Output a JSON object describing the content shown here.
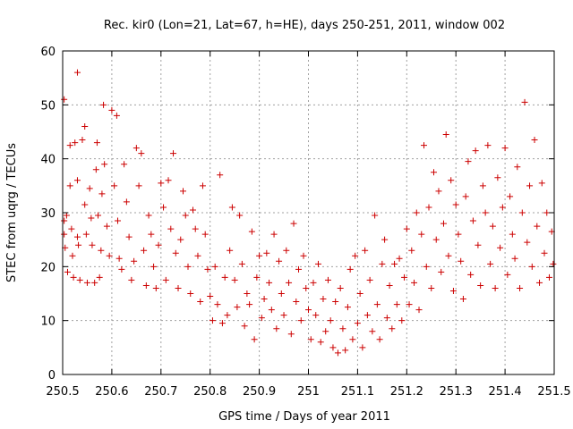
{
  "chart_data": {
    "type": "scatter",
    "title": "Rec. kir0 (Lon=21, Lat=67, h=HE), days 250-251, 2011, window 002",
    "xlabel": "GPS time / Days of year 2011",
    "ylabel": "STEC from uqrg / TECUs",
    "xlim": [
      250.5,
      251.5
    ],
    "ylim": [
      0,
      60
    ],
    "xticks": [
      "250.5",
      "250.6",
      "250.7",
      "250.8",
      "250.9",
      "251",
      "251.1",
      "251.2",
      "251.3",
      "251.4",
      "251.5"
    ],
    "yticks": [
      "0",
      "10",
      "20",
      "30",
      "40",
      "50",
      "60"
    ],
    "grid": true,
    "marker": "+",
    "color": "#cc0000",
    "series": [
      {
        "name": "",
        "points": [
          [
            250.503,
            51.0
          ],
          [
            250.503,
            28.5
          ],
          [
            250.503,
            26.0
          ],
          [
            250.505,
            23.5
          ],
          [
            250.508,
            29.5
          ],
          [
            250.51,
            19.0
          ],
          [
            250.515,
            42.5
          ],
          [
            250.515,
            35.0
          ],
          [
            250.518,
            27.0
          ],
          [
            250.52,
            22.0
          ],
          [
            250.522,
            18.0
          ],
          [
            250.525,
            43.0
          ],
          [
            250.53,
            56.0
          ],
          [
            250.53,
            36.0
          ],
          [
            250.53,
            25.5
          ],
          [
            250.532,
            24.0
          ],
          [
            250.535,
            17.5
          ],
          [
            250.54,
            43.5
          ],
          [
            250.545,
            46.0
          ],
          [
            250.545,
            31.5
          ],
          [
            250.548,
            26.0
          ],
          [
            250.55,
            17.0
          ],
          [
            250.555,
            34.5
          ],
          [
            250.558,
            29.0
          ],
          [
            250.56,
            24.0
          ],
          [
            250.565,
            17.0
          ],
          [
            250.568,
            38.0
          ],
          [
            250.57,
            43.0
          ],
          [
            250.572,
            29.5
          ],
          [
            250.575,
            18.0
          ],
          [
            250.578,
            23.0
          ],
          [
            250.58,
            33.5
          ],
          [
            250.583,
            50.0
          ],
          [
            250.585,
            39.0
          ],
          [
            250.59,
            27.5
          ],
          [
            250.595,
            22.0
          ],
          [
            250.6,
            49.0
          ],
          [
            250.605,
            35.0
          ],
          [
            250.61,
            48.0
          ],
          [
            250.612,
            28.5
          ],
          [
            250.615,
            21.5
          ],
          [
            250.62,
            19.5
          ],
          [
            250.625,
            39.0
          ],
          [
            250.63,
            32.0
          ],
          [
            250.635,
            25.5
          ],
          [
            250.64,
            17.5
          ],
          [
            250.645,
            21.0
          ],
          [
            250.65,
            42.0
          ],
          [
            250.655,
            35.0
          ],
          [
            250.66,
            41.0
          ],
          [
            250.665,
            23.0
          ],
          [
            250.67,
            16.5
          ],
          [
            250.675,
            29.5
          ],
          [
            250.68,
            26.0
          ],
          [
            250.685,
            20.0
          ],
          [
            250.69,
            16.0
          ],
          [
            250.695,
            24.0
          ],
          [
            250.7,
            35.5
          ],
          [
            250.705,
            31.0
          ],
          [
            250.71,
            17.5
          ],
          [
            250.715,
            36.0
          ],
          [
            250.72,
            27.0
          ],
          [
            250.725,
            41.0
          ],
          [
            250.73,
            22.5
          ],
          [
            250.735,
            16.0
          ],
          [
            250.74,
            25.0
          ],
          [
            250.745,
            34.0
          ],
          [
            250.75,
            29.5
          ],
          [
            250.755,
            20.0
          ],
          [
            250.76,
            15.0
          ],
          [
            250.765,
            30.5
          ],
          [
            250.77,
            27.0
          ],
          [
            250.775,
            22.0
          ],
          [
            250.78,
            13.5
          ],
          [
            250.785,
            35.0
          ],
          [
            250.79,
            26.0
          ],
          [
            250.795,
            19.5
          ],
          [
            250.8,
            14.5
          ],
          [
            250.805,
            10.0
          ],
          [
            250.81,
            20.0
          ],
          [
            250.815,
            13.0
          ],
          [
            250.82,
            37.0
          ],
          [
            250.825,
            9.5
          ],
          [
            250.83,
            18.0
          ],
          [
            250.835,
            11.0
          ],
          [
            250.84,
            23.0
          ],
          [
            250.845,
            31.0
          ],
          [
            250.85,
            17.5
          ],
          [
            250.855,
            12.5
          ],
          [
            250.86,
            29.5
          ],
          [
            250.865,
            20.5
          ],
          [
            250.87,
            9.0
          ],
          [
            250.875,
            15.0
          ],
          [
            250.88,
            13.0
          ],
          [
            250.885,
            26.5
          ],
          [
            250.89,
            6.5
          ],
          [
            250.895,
            18.0
          ],
          [
            250.9,
            22.0
          ],
          [
            250.905,
            10.5
          ],
          [
            250.91,
            14.0
          ],
          [
            250.915,
            22.5
          ],
          [
            250.92,
            17.0
          ],
          [
            250.925,
            12.0
          ],
          [
            250.93,
            26.0
          ],
          [
            250.935,
            8.5
          ],
          [
            250.94,
            21.0
          ],
          [
            250.945,
            15.0
          ],
          [
            250.95,
            11.0
          ],
          [
            250.955,
            23.0
          ],
          [
            250.96,
            17.0
          ],
          [
            250.965,
            7.5
          ],
          [
            250.97,
            28.0
          ],
          [
            250.975,
            13.5
          ],
          [
            250.98,
            19.5
          ],
          [
            250.985,
            10.0
          ],
          [
            250.99,
            22.0
          ],
          [
            250.995,
            16.0
          ],
          [
            251.0,
            12.0
          ],
          [
            251.005,
            6.5
          ],
          [
            251.01,
            17.0
          ],
          [
            251.015,
            11.0
          ],
          [
            251.02,
            20.5
          ],
          [
            251.025,
            6.0
          ],
          [
            251.03,
            14.0
          ],
          [
            251.035,
            8.0
          ],
          [
            251.04,
            17.5
          ],
          [
            251.045,
            10.0
          ],
          [
            251.05,
            5.0
          ],
          [
            251.055,
            13.5
          ],
          [
            251.06,
            4.0
          ],
          [
            251.065,
            16.0
          ],
          [
            251.07,
            8.5
          ],
          [
            251.075,
            4.5
          ],
          [
            251.08,
            12.5
          ],
          [
            251.085,
            19.5
          ],
          [
            251.09,
            6.5
          ],
          [
            251.095,
            22.0
          ],
          [
            251.1,
            9.5
          ],
          [
            251.105,
            15.0
          ],
          [
            251.11,
            5.0
          ],
          [
            251.115,
            23.0
          ],
          [
            251.12,
            11.0
          ],
          [
            251.125,
            17.5
          ],
          [
            251.13,
            8.0
          ],
          [
            251.135,
            29.5
          ],
          [
            251.14,
            13.0
          ],
          [
            251.145,
            6.5
          ],
          [
            251.15,
            20.5
          ],
          [
            251.155,
            25.0
          ],
          [
            251.16,
            10.5
          ],
          [
            251.165,
            16.5
          ],
          [
            251.17,
            8.5
          ],
          [
            251.175,
            20.5
          ],
          [
            251.18,
            13.0
          ],
          [
            251.185,
            21.5
          ],
          [
            251.19,
            10.0
          ],
          [
            251.195,
            18.0
          ],
          [
            251.2,
            27.0
          ],
          [
            251.205,
            13.0
          ],
          [
            251.21,
            23.0
          ],
          [
            251.215,
            17.0
          ],
          [
            251.22,
            30.0
          ],
          [
            251.225,
            12.0
          ],
          [
            251.23,
            26.0
          ],
          [
            251.235,
            42.5
          ],
          [
            251.24,
            20.0
          ],
          [
            251.245,
            31.0
          ],
          [
            251.25,
            16.0
          ],
          [
            251.255,
            37.5
          ],
          [
            251.26,
            25.0
          ],
          [
            251.265,
            34.0
          ],
          [
            251.27,
            19.0
          ],
          [
            251.275,
            28.0
          ],
          [
            251.28,
            44.5
          ],
          [
            251.285,
            22.0
          ],
          [
            251.29,
            36.0
          ],
          [
            251.295,
            15.5
          ],
          [
            251.3,
            31.5
          ],
          [
            251.305,
            26.0
          ],
          [
            251.31,
            21.0
          ],
          [
            251.315,
            14.0
          ],
          [
            251.32,
            33.0
          ],
          [
            251.325,
            39.5
          ],
          [
            251.33,
            18.5
          ],
          [
            251.335,
            28.5
          ],
          [
            251.34,
            41.5
          ],
          [
            251.345,
            24.0
          ],
          [
            251.35,
            16.5
          ],
          [
            251.355,
            35.0
          ],
          [
            251.36,
            30.0
          ],
          [
            251.365,
            42.5
          ],
          [
            251.37,
            20.5
          ],
          [
            251.375,
            27.5
          ],
          [
            251.38,
            16.0
          ],
          [
            251.385,
            36.5
          ],
          [
            251.39,
            23.5
          ],
          [
            251.395,
            31.0
          ],
          [
            251.4,
            42.0
          ],
          [
            251.405,
            18.5
          ],
          [
            251.41,
            33.0
          ],
          [
            251.415,
            26.0
          ],
          [
            251.42,
            21.5
          ],
          [
            251.425,
            38.5
          ],
          [
            251.43,
            16.0
          ],
          [
            251.435,
            30.0
          ],
          [
            251.44,
            50.5
          ],
          [
            251.445,
            24.5
          ],
          [
            251.45,
            35.0
          ],
          [
            251.455,
            20.0
          ],
          [
            251.46,
            43.5
          ],
          [
            251.465,
            27.5
          ],
          [
            251.47,
            17.0
          ],
          [
            251.475,
            35.5
          ],
          [
            251.48,
            22.5
          ],
          [
            251.485,
            30.0
          ],
          [
            251.49,
            18.0
          ],
          [
            251.495,
            26.5
          ],
          [
            251.498,
            20.5
          ]
        ]
      }
    ]
  }
}
